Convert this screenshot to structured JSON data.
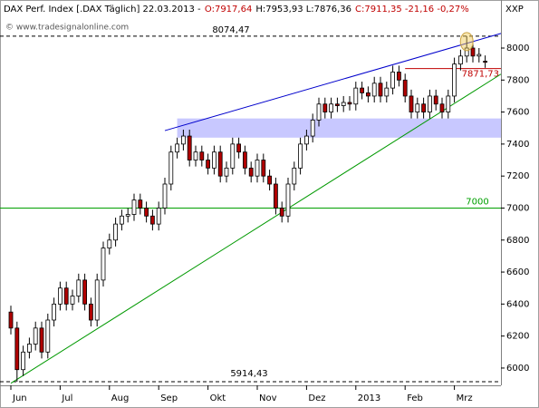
{
  "chart_data": {
    "type": "candlestick",
    "title_parts": [
      {
        "text": "DAX Perf. Index [.DAX  Täglich] 22.03.2013 -",
        "color": "#000000"
      },
      {
        "text": "O:7917,64",
        "color": "#c00000"
      },
      {
        "text": "H:7953,93 L:7876,36",
        "color": "#000000"
      },
      {
        "text": "C:7911,35 -21,16 -0,27%",
        "color": "#c00000"
      }
    ],
    "watermark": "© www.tradesignalonline.com",
    "symbol": "XXP",
    "categories": [
      "Jun",
      null,
      null,
      null,
      null,
      null,
      null,
      null,
      "Jul",
      null,
      null,
      null,
      null,
      null,
      null,
      null,
      "Aug",
      null,
      null,
      null,
      null,
      null,
      null,
      null,
      "Sep",
      null,
      null,
      null,
      null,
      null,
      null,
      null,
      "Okt",
      null,
      null,
      null,
      null,
      null,
      null,
      null,
      "Nov",
      null,
      null,
      null,
      null,
      null,
      null,
      null,
      "Dez",
      null,
      null,
      null,
      null,
      null,
      null,
      null,
      "2013",
      null,
      null,
      null,
      null,
      null,
      null,
      null,
      "Feb",
      null,
      null,
      null,
      null,
      null,
      null,
      null,
      "Mrz",
      null,
      null,
      null,
      null,
      null
    ],
    "open": [
      6350,
      6250,
      5990,
      6100,
      6150,
      6250,
      6100,
      6300,
      6400,
      6500,
      6400,
      6450,
      6550,
      6400,
      6300,
      6550,
      6750,
      6800,
      6900,
      6950,
      6960,
      7050,
      7000,
      6950,
      6900,
      7000,
      7150,
      7350,
      7400,
      7450,
      7300,
      7350,
      7300,
      7250,
      7350,
      7200,
      7250,
      7400,
      7350,
      7250,
      7200,
      7300,
      7200,
      7150,
      7000,
      6950,
      7150,
      7250,
      7400,
      7450,
      7550,
      7650,
      7600,
      7650,
      7640,
      7660,
      7650,
      7750,
      7720,
      7700,
      7780,
      7700,
      7750,
      7850,
      7800,
      7700,
      7600,
      7650,
      7600,
      7700,
      7650,
      7600,
      7700,
      7900,
      7950,
      8000,
      7950,
      7917.64
    ],
    "high": [
      6390,
      6290,
      6140,
      6190,
      6290,
      6290,
      6340,
      6440,
      6540,
      6540,
      6490,
      6590,
      6590,
      6440,
      6590,
      6790,
      6840,
      6940,
      6990,
      7000,
      7090,
      7090,
      7040,
      6990,
      7040,
      7190,
      7390,
      7440,
      7490,
      7490,
      7390,
      7390,
      7340,
      7390,
      7390,
      7290,
      7440,
      7440,
      7390,
      7290,
      7340,
      7340,
      7240,
      7190,
      7040,
      7190,
      7290,
      7440,
      7490,
      7590,
      7690,
      7690,
      7690,
      7690,
      7700,
      7700,
      7790,
      7790,
      7760,
      7820,
      7820,
      7790,
      7890,
      7890,
      7840,
      7740,
      7690,
      7690,
      7740,
      7740,
      7690,
      7740,
      7940,
      7990,
      8074.47,
      8040,
      8000,
      7953.93
    ],
    "low": [
      6210,
      5914.43,
      5950,
      6060,
      6110,
      6060,
      6060,
      6260,
      6360,
      6360,
      6360,
      6410,
      6360,
      6260,
      6260,
      6510,
      6710,
      6760,
      6860,
      6910,
      6920,
      6960,
      6910,
      6860,
      6860,
      6960,
      7110,
      7310,
      7360,
      7260,
      7260,
      7260,
      7210,
      7210,
      7160,
      7160,
      7210,
      7310,
      7210,
      7160,
      7160,
      7160,
      7110,
      6960,
      6910,
      6910,
      7110,
      7210,
      7360,
      7410,
      7510,
      7560,
      7560,
      7600,
      7600,
      7610,
      7610,
      7680,
      7660,
      7660,
      7660,
      7660,
      7710,
      7760,
      7660,
      7560,
      7560,
      7560,
      7560,
      7610,
      7560,
      7560,
      7660,
      7860,
      7910,
      7910,
      7910,
      7876.36
    ],
    "close": [
      6250,
      5990,
      6100,
      6150,
      6250,
      6100,
      6300,
      6400,
      6500,
      6400,
      6450,
      6550,
      6400,
      6300,
      6550,
      6750,
      6800,
      6900,
      6950,
      6960,
      7050,
      7000,
      6950,
      6900,
      7000,
      7150,
      7350,
      7400,
      7450,
      7300,
      7350,
      7300,
      7250,
      7350,
      7200,
      7250,
      7400,
      7350,
      7250,
      7200,
      7300,
      7200,
      7150,
      7000,
      6950,
      7150,
      7250,
      7400,
      7450,
      7550,
      7650,
      7600,
      7650,
      7640,
      7660,
      7650,
      7750,
      7720,
      7700,
      7780,
      7700,
      7750,
      7850,
      7800,
      7700,
      7600,
      7650,
      7600,
      7700,
      7650,
      7600,
      7700,
      7900,
      7950,
      8000,
      7950,
      7960,
      7911.35
    ],
    "colors": {
      "up": "#ffffff",
      "down": "#b00000"
    },
    "ylim": [
      5892,
      8289
    ],
    "yticks": [
      6000,
      6200,
      6400,
      6600,
      6800,
      7000,
      7200,
      7400,
      7600,
      7800,
      8000
    ],
    "band": {
      "from": 27,
      "low": 7440,
      "high": 7560,
      "color": "#c8c8ff"
    },
    "trendlines": [
      {
        "from": [
          25,
          7484
        ],
        "to": [
          77,
          8063
        ],
        "color": "#0000cc"
      },
      {
        "from": [
          0,
          5905
        ],
        "to": [
          77,
          7775
        ],
        "color": "#009900"
      }
    ],
    "levels": [
      {
        "value": 8074.47,
        "label": "8074,47",
        "color": "#000000",
        "dashed": true
      },
      {
        "value": 5914.43,
        "label": "5914,43",
        "color": "#000000",
        "dashed": true
      },
      {
        "value": 7871.73,
        "label": "7871,73",
        "color": "#c00000",
        "from": 64
      },
      {
        "value": 7000,
        "color": "#00a000"
      }
    ],
    "highlight_at": 74
  }
}
